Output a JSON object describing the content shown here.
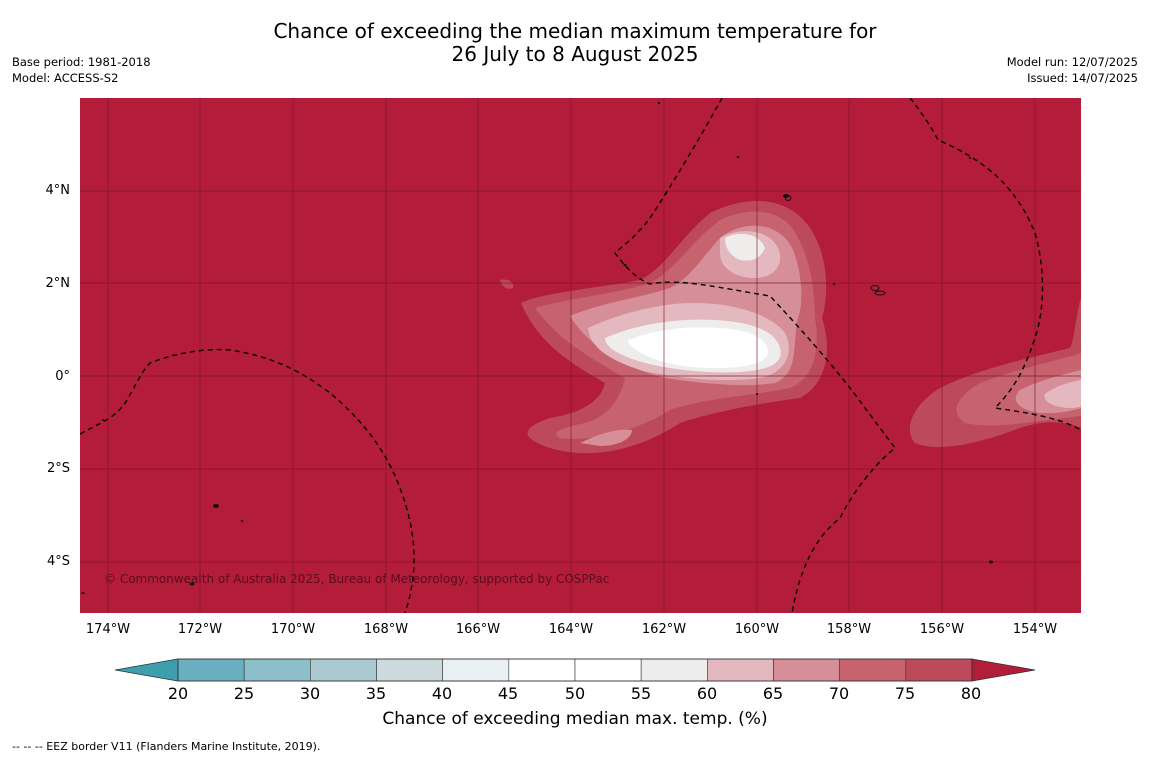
{
  "title": {
    "line1": "Chance of exceeding the median maximum temperature for",
    "line2": "26 July to 8 August 2025"
  },
  "meta_left": [
    "Base period: 1981-2018",
    "Model: ACCESS-S2"
  ],
  "meta_right": [
    "Model run: 12/07/2025",
    "Issued: 14/07/2025"
  ],
  "map": {
    "lon_labels": [
      "174°W",
      "172°W",
      "170°W",
      "168°W",
      "166°W",
      "164°W",
      "162°W",
      "160°W",
      "158°W",
      "156°W",
      "154°W"
    ],
    "lat_labels": [
      "4°N",
      "2°N",
      "0°",
      "2°S",
      "4°S"
    ],
    "copyright": "© Commonwealth of Australia 2025, Bureau of Meteorology, supported by COSPPac",
    "background_color": "#b31d3a"
  },
  "colorbar": {
    "ticks": [
      "20",
      "25",
      "30",
      "35",
      "40",
      "45",
      "50",
      "55",
      "60",
      "65",
      "70",
      "75",
      "80"
    ],
    "colors": [
      "#6aafbf",
      "#8cbfca",
      "#abc9d0",
      "#ccd9dd",
      "#e9f0f1",
      "#ffffff",
      "#ffffff",
      "#efecec",
      "#e3b9bf",
      "#d68f99",
      "#c7626f",
      "#bd4a5a"
    ],
    "low_color": "#3d9eae",
    "high_color": "#b31d3a",
    "label": "Chance of exceeding median max. temp. (%)"
  },
  "footnote": "--  --  -- EEZ border V11 (Flanders Marine Institute, 2019)."
}
